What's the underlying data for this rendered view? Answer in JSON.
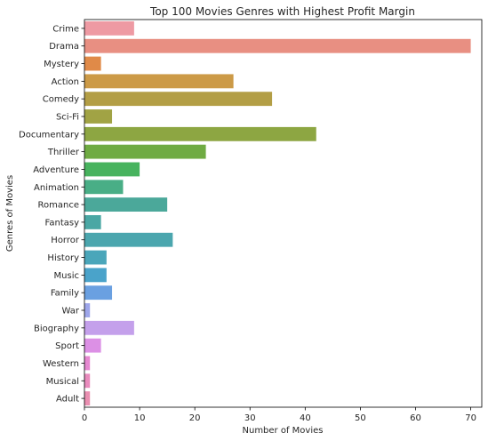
{
  "chart_data": {
    "type": "bar",
    "orientation": "horizontal",
    "title": "Top 100 Movies Genres with Highest Profit Margin",
    "xlabel": "Number of Movies",
    "ylabel": "Genres of Movies",
    "xlim": [
      0,
      72
    ],
    "xticks": [
      0,
      10,
      20,
      30,
      40,
      50,
      60,
      70
    ],
    "grid": false,
    "categories": [
      "Crime",
      "Drama",
      "Mystery",
      "Action",
      "Comedy",
      "Sci-Fi",
      "Documentary",
      "Thriller",
      "Adventure",
      "Animation",
      "Romance",
      "Fantasy",
      "Horror",
      "History",
      "Music",
      "Family",
      "War",
      "Biography",
      "Sport",
      "Western",
      "Musical",
      "Adult"
    ],
    "values": [
      9,
      70,
      3,
      27,
      34,
      5,
      42,
      22,
      10,
      7,
      15,
      3,
      16,
      4,
      4,
      5,
      1,
      9,
      3,
      1,
      1,
      1
    ],
    "colors": [
      "#ee9aa3",
      "#e88f82",
      "#e08a48",
      "#cc9a47",
      "#b39e45",
      "#a1a344",
      "#8da642",
      "#6fab42",
      "#47b35e",
      "#49ae86",
      "#4ba89a",
      "#4aa7a4",
      "#4ba6ae",
      "#4aa6ba",
      "#4aa3ca",
      "#6aa0e1",
      "#9ea6ea",
      "#c4a0eb",
      "#dc90e5",
      "#e688d1",
      "#e98bbd",
      "#ea8fb1"
    ]
  }
}
